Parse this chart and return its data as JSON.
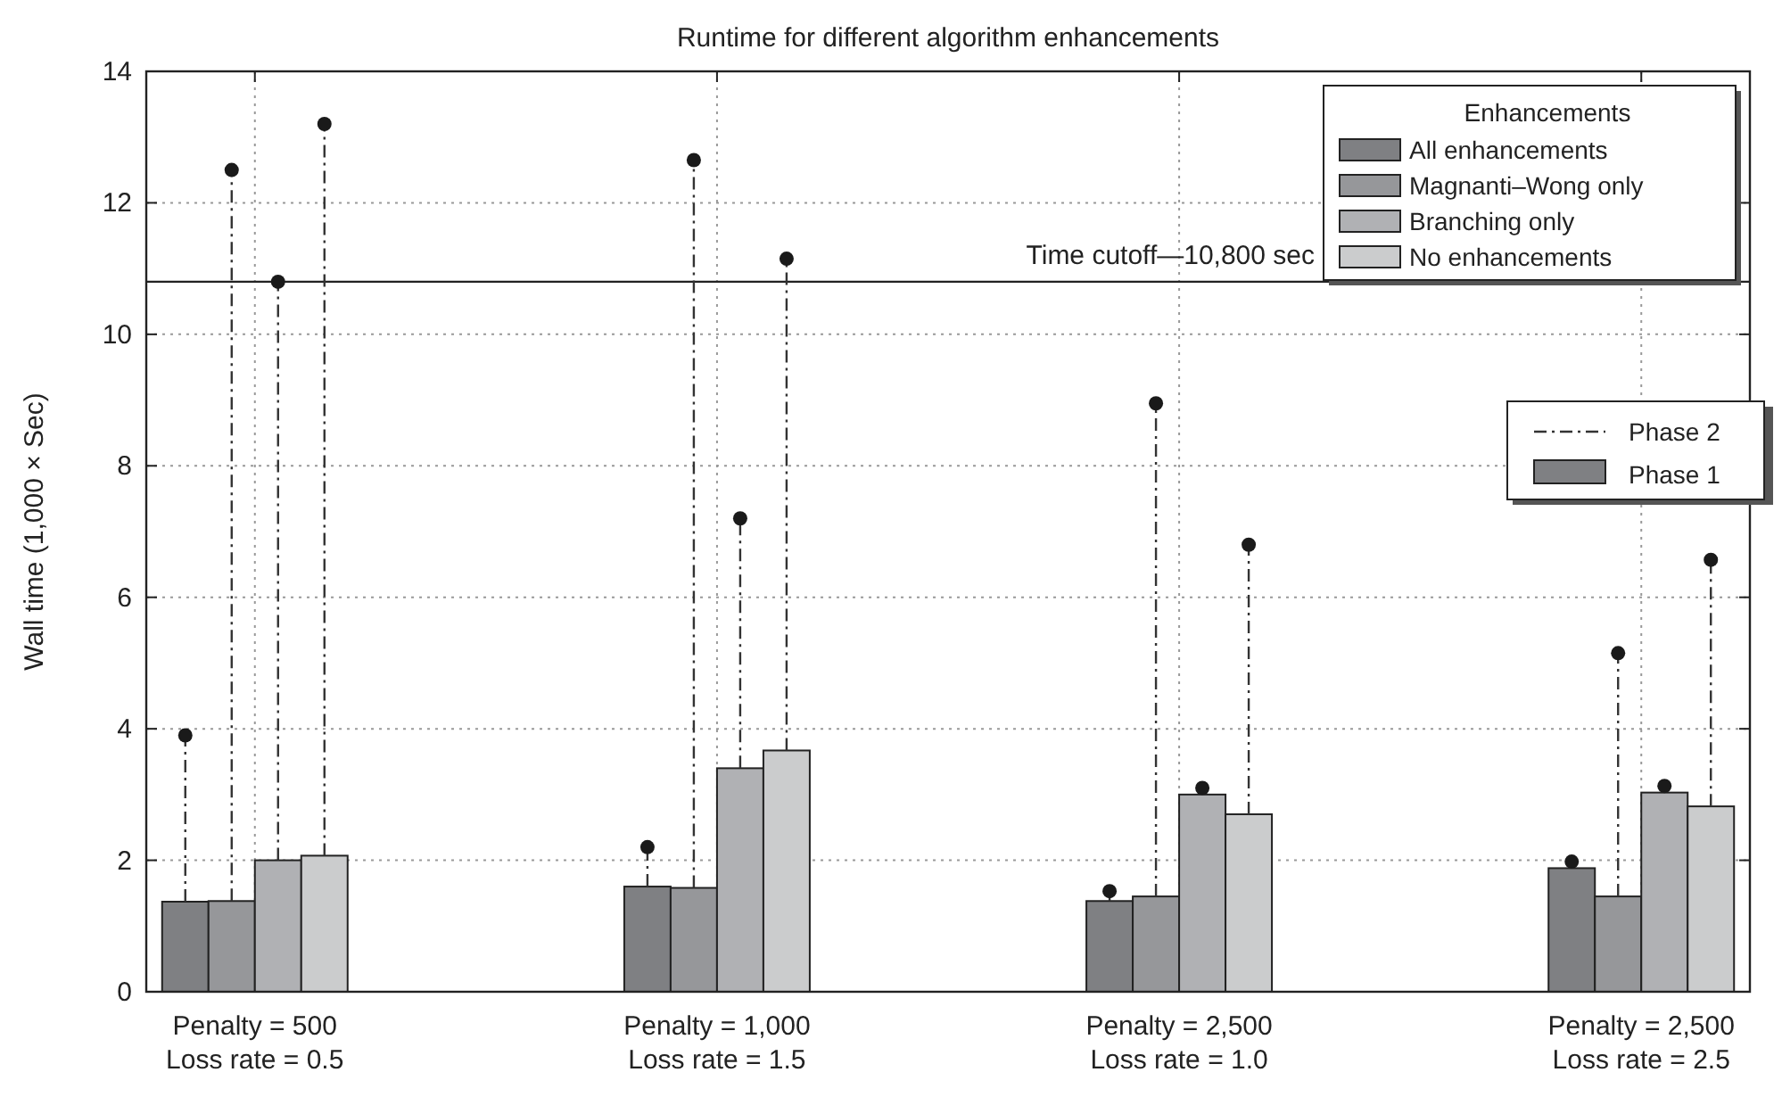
{
  "chart_data": {
    "type": "bar",
    "title": "Runtime for different algorithm enhancements",
    "ylabel": "Wall time (1,000 × Sec)",
    "legend_title": "Enhancements",
    "categories": [
      "Penalty = 500\nLoss rate = 0.5",
      "Penalty = 1,000\nLoss rate = 1.5",
      "Penalty = 2,500\nLoss rate = 1.0",
      "Penalty = 2,500\nLoss rate = 2.5"
    ],
    "series": [
      {
        "name": "All enhancements",
        "color": "#7f8083",
        "values": [
          1.37,
          1.6,
          1.38,
          1.88
        ],
        "errors": [
          [
            1.37,
            3.9
          ],
          [
            1.6,
            2.2
          ],
          [
            1.38,
            1.53
          ],
          [
            1.88,
            1.98
          ]
        ]
      },
      {
        "name": "Magnanti–Wong only",
        "color": "#96979a",
        "values": [
          1.38,
          1.58,
          1.45,
          1.45
        ],
        "errors": [
          [
            1.38,
            12.5
          ],
          [
            1.58,
            12.65
          ],
          [
            1.45,
            8.95
          ],
          [
            1.45,
            5.15
          ]
        ]
      },
      {
        "name": "Branching only",
        "color": "#b0b1b4",
        "values": [
          2.0,
          3.4,
          3.0,
          3.03
        ],
        "errors": [
          [
            2.0,
            10.8
          ],
          [
            3.4,
            7.2
          ],
          [
            3.0,
            3.1
          ],
          [
            3.03,
            3.13
          ]
        ]
      },
      {
        "name": "No enhancements",
        "color": "#cbcccd",
        "values": [
          2.07,
          3.67,
          2.7,
          2.82
        ],
        "errors": [
          [
            2.07,
            13.2
          ],
          [
            3.67,
            11.15
          ],
          [
            2.7,
            6.8
          ],
          [
            2.82,
            6.57
          ]
        ]
      }
    ],
    "ylim": [
      0,
      14
    ],
    "yticks": [
      0,
      2,
      4,
      6,
      8,
      10,
      12,
      14
    ],
    "ref_lines": [
      {
        "axis": "y",
        "value": 10.8,
        "label": "Time cutoff—10,800 sec"
      }
    ],
    "annotations": [
      "Phase 2",
      "Phase 1"
    ],
    "grid": true,
    "legend": "top right"
  }
}
